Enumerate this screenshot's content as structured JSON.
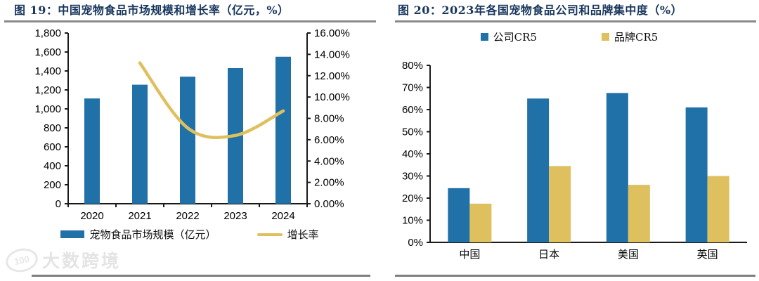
{
  "watermark": {
    "text": "大数跨境",
    "logo_text": "100"
  },
  "colors": {
    "bar_blue": "#2171a9",
    "line_gold": "#dfc05f",
    "title_navy": "#17365d",
    "axis_black": "#1a1a1a",
    "rule_gray": "#8a8a8a"
  },
  "chart_data": [
    {
      "type": "bar",
      "title": "图 19：中国宠物食品市场规模和增长率（亿元，%）",
      "categories": [
        "2020",
        "2021",
        "2022",
        "2023",
        "2024"
      ],
      "series": [
        {
          "name": "宠物食品市场规模（亿元）",
          "type": "bar",
          "axis": "left",
          "color": "#2171a9",
          "values": [
            1110,
            1255,
            1340,
            1430,
            1550
          ]
        },
        {
          "name": "增长率",
          "type": "line",
          "axis": "right",
          "color": "#dfc05f",
          "values": [
            null,
            13.2,
            7.1,
            6.4,
            8.7
          ]
        }
      ],
      "left_axis": {
        "min": 0,
        "max": 1800,
        "step": 200,
        "format": "thousands"
      },
      "right_axis": {
        "min": 0,
        "max": 16,
        "step": 2,
        "format": "percent2"
      },
      "grid": false,
      "legend_position": "bottom"
    },
    {
      "type": "bar",
      "title": "图 20：2023年各国宠物食品公司和品牌集中度（%）",
      "categories": [
        "中国",
        "日本",
        "美国",
        "英国"
      ],
      "series": [
        {
          "name": "公司CR5",
          "color": "#2171a9",
          "values": [
            24.5,
            65,
            67.5,
            61
          ]
        },
        {
          "name": "品牌CR5",
          "color": "#dfc05f",
          "values": [
            17.5,
            34.5,
            26,
            30
          ]
        }
      ],
      "y_axis": {
        "min": 0,
        "max": 80,
        "step": 10,
        "format": "percent0"
      },
      "grid": false,
      "legend_position": "top"
    }
  ]
}
